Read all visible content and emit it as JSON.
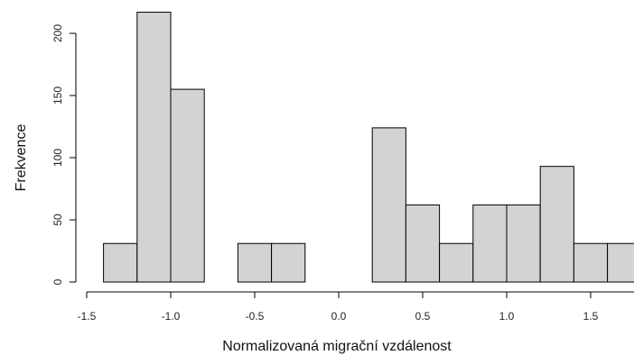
{
  "chart_data": {
    "type": "bar",
    "subtype": "histogram",
    "title": "",
    "xlabel": "Normalizovaná migrační vzdálenost",
    "ylabel": "Frekvence",
    "xlim": [
      -1.5,
      1.75
    ],
    "ylim": [
      0,
      220
    ],
    "x_ticks": [
      -1.5,
      -1.0,
      -0.5,
      0.0,
      0.5,
      1.0,
      1.5
    ],
    "x_tick_labels": [
      "-1.5",
      "-1.0",
      "-0.5",
      "0.0",
      "0.5",
      "1.0",
      "1.5"
    ],
    "y_ticks": [
      0,
      50,
      100,
      150,
      200
    ],
    "y_tick_labels": [
      "0",
      "50",
      "100",
      "150",
      "200"
    ],
    "bins": [
      {
        "x0": -1.4,
        "x1": -1.2,
        "count": 31
      },
      {
        "x0": -1.2,
        "x1": -1.0,
        "count": 217
      },
      {
        "x0": -1.0,
        "x1": -0.8,
        "count": 155
      },
      {
        "x0": -0.8,
        "x1": -0.6,
        "count": 0
      },
      {
        "x0": -0.6,
        "x1": -0.4,
        "count": 31
      },
      {
        "x0": -0.4,
        "x1": -0.2,
        "count": 31
      },
      {
        "x0": -0.2,
        "x1": 0.0,
        "count": 0
      },
      {
        "x0": 0.0,
        "x1": 0.2,
        "count": 0
      },
      {
        "x0": 0.2,
        "x1": 0.4,
        "count": 124
      },
      {
        "x0": 0.4,
        "x1": 0.6,
        "count": 62
      },
      {
        "x0": 0.6,
        "x1": 0.8,
        "count": 31
      },
      {
        "x0": 0.8,
        "x1": 1.0,
        "count": 62
      },
      {
        "x0": 1.0,
        "x1": 1.2,
        "count": 62
      },
      {
        "x0": 1.2,
        "x1": 1.4,
        "count": 93
      },
      {
        "x0": 1.4,
        "x1": 1.6,
        "count": 31
      },
      {
        "x0": 1.6,
        "x1": 1.8,
        "count": 31
      }
    ],
    "bar_color": "#d3d3d3",
    "edge_color": "#000000",
    "grid": false,
    "legend": "none"
  }
}
